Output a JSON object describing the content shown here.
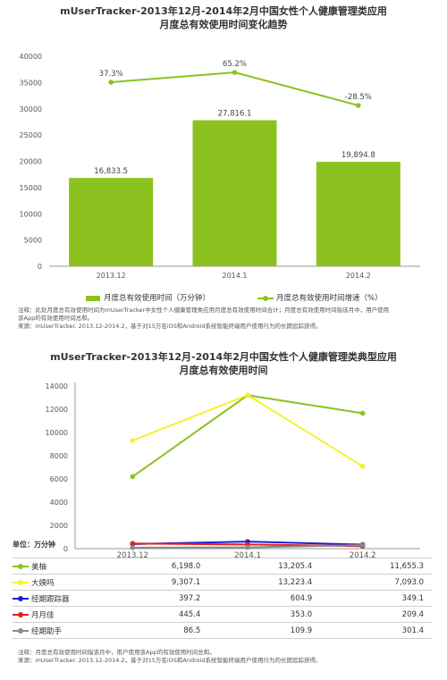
{
  "chart1": {
    "title_line1": "mUserTracker-2013年12月-2014年2月中国女性个人健康管理类应用",
    "title_line2": "月度总有效使用时间变化趋势",
    "type": "bar+line",
    "categories": [
      "2013.12",
      "2014.1",
      "2014.2"
    ],
    "bar_series": {
      "name": "月度总有效使用时间（万分钟）",
      "values": [
        16833.5,
        27816.1,
        19894.8
      ],
      "labels": [
        "16,833.5",
        "27,816.1",
        "19,894.8"
      ],
      "color": "#8cc21f"
    },
    "line_series": {
      "name": "月度总有效使用时间增速（%）",
      "values": [
        37.3,
        65.2,
        -28.5
      ],
      "labels": [
        "37.3%",
        "65.2%",
        "-28.5%"
      ],
      "color": "#8cc21f"
    },
    "ylim": [
      0,
      40000
    ],
    "yticks": [
      0,
      5000,
      10000,
      15000,
      20000,
      25000,
      30000,
      35000,
      40000
    ],
    "note_line1": "注释：此处月度总有效使用时间为mUserTracker中女性个人健康管理类应用月度总有效使用时间合计；月度总有效使用时间指该月中，用户使用",
    "note_line2": "该App的有效使用时间总和。",
    "source": "来源：mUserTracker. 2013.12-2014.2，基于对15万名iOS和Android系统智能终端用户使用行为的长期追踪获得。"
  },
  "chart_data": [
    {
      "type": "bar",
      "title": "mUserTracker-2013年12月-2014年2月中国女性个人健康管理类应用 月度总有效使用时间变化趋势",
      "categories": [
        "2013.12",
        "2014.1",
        "2014.2"
      ],
      "series": [
        {
          "name": "月度总有效使用时间（万分钟）",
          "values": [
            16833.5,
            27816.1,
            19894.8
          ]
        },
        {
          "name": "月度总有效使用时间增速（%）",
          "values": [
            37.3,
            65.2,
            -28.5
          ]
        }
      ],
      "ylim": [
        0,
        40000
      ]
    },
    {
      "type": "line",
      "title": "mUserTracker-2013年12月-2014年2月中国女性个人健康管理类典型应用 月度总有效使用时间",
      "categories": [
        "2013.12",
        "2014.1",
        "2014.2"
      ],
      "series": [
        {
          "name": "美柚",
          "values": [
            6198.0,
            13205.4,
            11655.3
          ]
        },
        {
          "name": "大姨吗",
          "values": [
            9307.1,
            13223.4,
            7093.0
          ]
        },
        {
          "name": "经期跟踪器",
          "values": [
            397.2,
            604.9,
            349.1
          ]
        },
        {
          "name": "月月佳",
          "values": [
            445.4,
            353.0,
            209.4
          ]
        },
        {
          "name": "经期助手",
          "values": [
            86.5,
            109.9,
            301.4
          ]
        }
      ],
      "ylim": [
        0,
        14000
      ]
    }
  ],
  "chart2": {
    "title_line1": "mUserTracker-2013年12月-2014年2月中国女性个人健康管理类典型应用",
    "title_line2": "月度总有效使用时间",
    "unit_label": "单位：万分钟",
    "categories": [
      "2013.12",
      "2014.1",
      "2014.2"
    ],
    "ylim": [
      0,
      14000
    ],
    "yticks": [
      0,
      2000,
      4000,
      6000,
      8000,
      10000,
      12000,
      14000
    ],
    "series": [
      {
        "name": "美柚",
        "values": [
          6198.0,
          13205.4,
          11655.3
        ],
        "labels": [
          "6,198.0",
          "13,205.4",
          "11,655.3"
        ],
        "color": "#8cc21f"
      },
      {
        "name": "大姨吗",
        "values": [
          9307.1,
          13223.4,
          7093.0
        ],
        "labels": [
          "9,307.1",
          "13,223.4",
          "7,093.0"
        ],
        "color": "#f3f32a"
      },
      {
        "name": "经期跟踪器",
        "values": [
          397.2,
          604.9,
          349.1
        ],
        "labels": [
          "397.2",
          "604.9",
          "349.1"
        ],
        "color": "#1f1fd0"
      },
      {
        "name": "月月佳",
        "values": [
          445.4,
          353.0,
          209.4
        ],
        "labels": [
          "445.4",
          "353.0",
          "209.4"
        ],
        "color": "#e02020"
      },
      {
        "name": "经期助手",
        "values": [
          86.5,
          109.9,
          301.4
        ],
        "labels": [
          "86.5",
          "109.9",
          "301.4"
        ],
        "color": "#8a8a8a"
      }
    ],
    "note": "注释：月度总有效使用时间指该月中，用户使用该App的有效使用时间总和。",
    "source": "来源：mUserTracker. 2013.12-2014.2，基于对15万名iOS和Android系统智能终端用户使用行为的长期追踪获得。"
  }
}
